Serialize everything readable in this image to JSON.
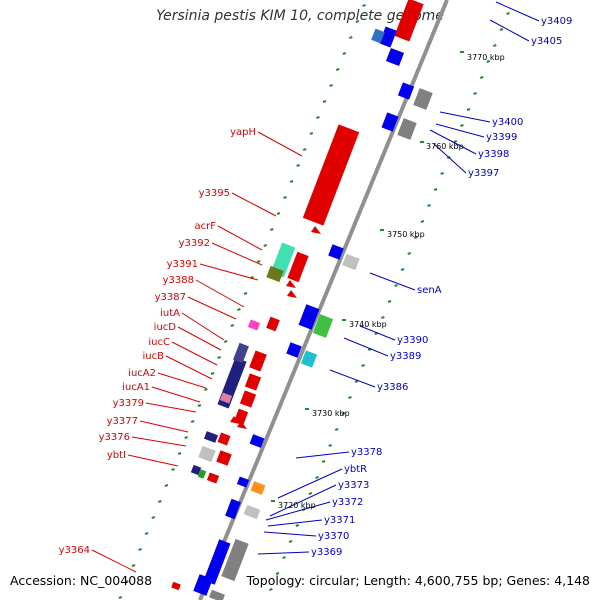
{
  "title": "Yersinia pestis KIM 10, complete genome",
  "accession": "Accession: NC_004088",
  "summary": "Topology: circular; Length: 4,600,755 bp; Genes: 4,148",
  "scale_labels": [
    "3770 kbp",
    "3760 kbp",
    "3750 kbp",
    "3740 kbp",
    "3730 kbp",
    "3720 kbp"
  ],
  "reverse_strand_genes": [
    "yapH",
    "y3395",
    "acrF",
    "y3392",
    "y3391",
    "y3388",
    "y3387",
    "iutA",
    "iucD",
    "iucC",
    "iucB",
    "iucA2",
    "iucA1",
    "y3379",
    "y3377",
    "y3376",
    "ybtI",
    "y3364"
  ],
  "forward_strand_genes": [
    "y3409",
    "y3405",
    "y3400",
    "y3399",
    "y3398",
    "y3397",
    "senA",
    "y3390",
    "y3389",
    "y3386",
    "y3378",
    "ybtR",
    "y3373",
    "y3372",
    "y3371",
    "y3370",
    "y3369"
  ],
  "colors": {
    "reverse_label": "#e00000",
    "forward_label": "#0000cc",
    "backbone": "#808080",
    "tick": "#2a8a2a"
  }
}
